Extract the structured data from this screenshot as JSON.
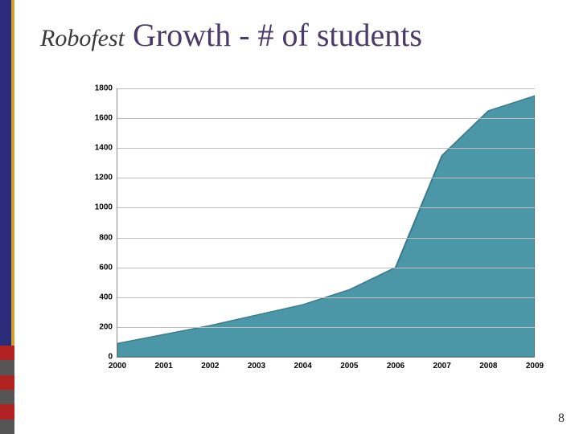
{
  "title": {
    "brand": "Robofest",
    "rest": " Growth - # of students",
    "brand_color": "#3a3a3a",
    "rest_color": "#4a3a6a",
    "brand_fontsize": 30,
    "rest_fontsize": 40
  },
  "left_bar": {
    "primary": "#2c2d7a",
    "secondary": "#c9a22f",
    "logo_colors": [
      "#b22222",
      "#555555",
      "#b22222",
      "#555555",
      "#b22222",
      "#555555"
    ]
  },
  "chart": {
    "type": "area",
    "x_labels": [
      "2000",
      "2001",
      "2002",
      "2003",
      "2004",
      "2005",
      "2006",
      "2007",
      "2008",
      "2009"
    ],
    "y_values": [
      90,
      150,
      210,
      280,
      350,
      450,
      600,
      1350,
      1650,
      1750
    ],
    "y_ticks": [
      0,
      200,
      400,
      600,
      800,
      1000,
      1200,
      1400,
      1600,
      1800
    ],
    "ylim": [
      0,
      1800
    ],
    "fill_color": "#4b97a8",
    "stroke_color": "#3a7a88",
    "grid_color": "#bfbfbf",
    "axis_color": "#888888",
    "background_color": "#ffffff",
    "tick_fontsize": 10,
    "tick_fontweight": "bold",
    "tick_color": "#000000"
  },
  "page_number": "8"
}
